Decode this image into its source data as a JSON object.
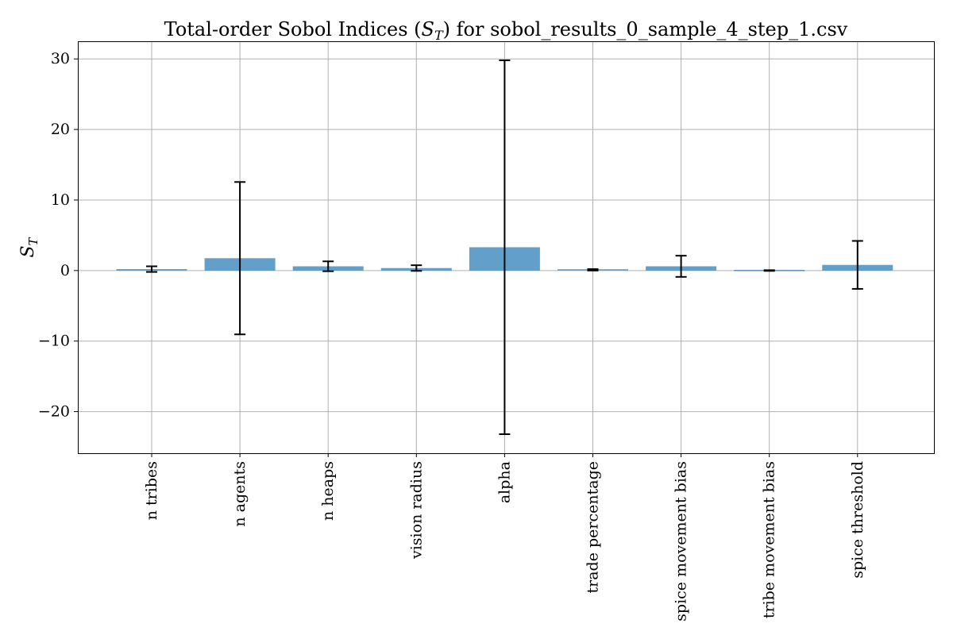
{
  "chart_data": {
    "type": "bar",
    "title": "Total-order Sobol Indices (S_T) for sobol_results_0_sample_4_step_1.csv",
    "title_prefix": "Total-order Sobol Indices (",
    "title_symbol_main": "S",
    "title_symbol_sub": "T",
    "title_suffix": ") for sobol_results_0_sample_4_step_1.csv",
    "xlabel": "",
    "ylabel": "S_T",
    "ylabel_main": "S",
    "ylabel_sub": "T",
    "ylim": [
      -25.9,
      32.5
    ],
    "yticks": [
      -20,
      -10,
      0,
      10,
      20,
      30
    ],
    "ytick_labels": [
      "−20",
      "−10",
      "0",
      "10",
      "20",
      "30"
    ],
    "grid": true,
    "categories": [
      "n_tribes",
      "n_agents",
      "n_heaps",
      "vision_radius",
      "alpha",
      "trade_percentage",
      "spice_movement_bias",
      "tribe_movement_bias",
      "spice_threshold"
    ],
    "category_labels": [
      "n tribes",
      "n agents",
      "n heaps",
      "vision radius",
      "alpha",
      "trade percentage",
      "spice movement bias",
      "tribe movement bias",
      "spice threshold"
    ],
    "values": [
      0.2,
      1.75,
      0.6,
      0.35,
      3.3,
      0.1,
      0.6,
      0.0,
      0.8
    ],
    "errors": [
      0.4,
      10.8,
      0.7,
      0.4,
      26.5,
      0.1,
      1.5,
      0.05,
      3.4
    ],
    "color": "#1f77b4"
  }
}
